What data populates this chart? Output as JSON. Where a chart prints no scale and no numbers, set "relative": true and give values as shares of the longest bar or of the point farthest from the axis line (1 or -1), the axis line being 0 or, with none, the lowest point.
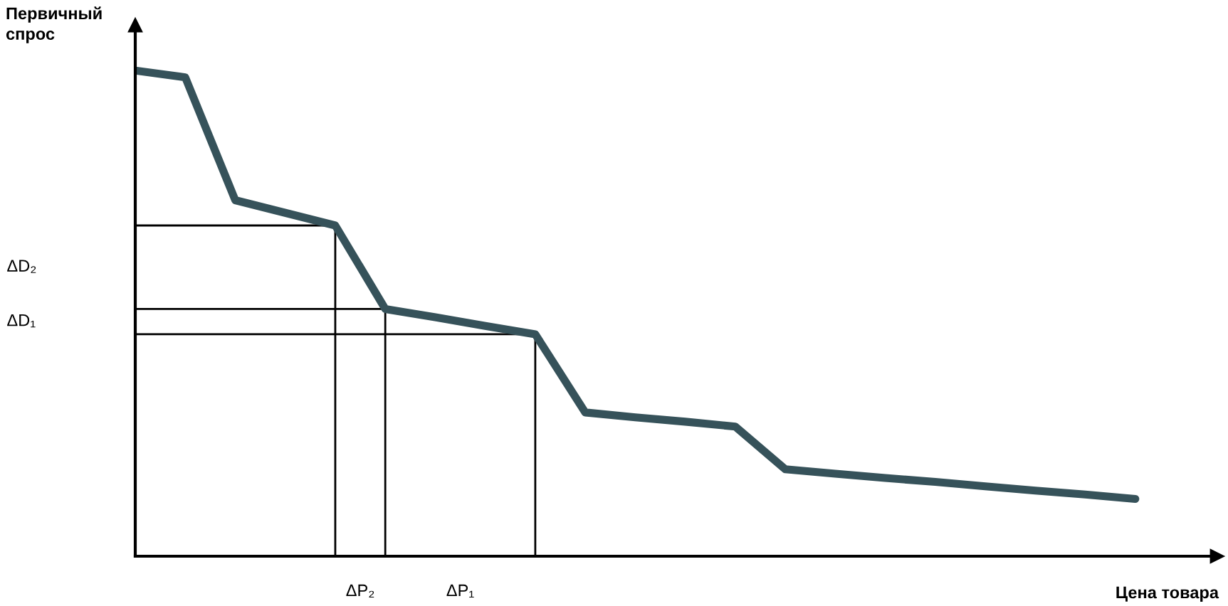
{
  "chart_data": {
    "type": "line",
    "relative": true,
    "xlabel": "Цена товара",
    "ylabel": "Первичный спрос",
    "marker": "none",
    "line_style": "solid",
    "categories": [
      null,
      null,
      null,
      null,
      null,
      null,
      null,
      null,
      null,
      null,
      null,
      null,
      null,
      null,
      null,
      null,
      null,
      null,
      null,
      null,
      null
    ],
    "series": [
      {
        "color": "#36525a",
        "values": [
          1,
          0.986,
          0.733,
          0.707,
          0.681,
          0.509,
          0.492,
          0.474,
          0.457,
          0.296,
          0.286,
          0.277,
          0.267,
          0.179,
          0.17,
          0.161,
          0.153,
          0.144,
          0.135,
          0.127,
          0.118
        ]
      }
    ],
    "ref_lines": [
      {
        "axis": "y",
        "value": 0.681,
        "color": "#000000",
        "line_style": "solid"
      },
      {
        "axis": "y",
        "value": 0.509,
        "color": "#000000",
        "line_style": "solid"
      },
      {
        "axis": "y",
        "value": 0.457,
        "color": "#000000",
        "line_style": "solid"
      }
    ],
    "annotations": [
      "ΔD₂",
      "ΔD₁",
      "ΔP₂",
      "ΔP₁"
    ]
  }
}
